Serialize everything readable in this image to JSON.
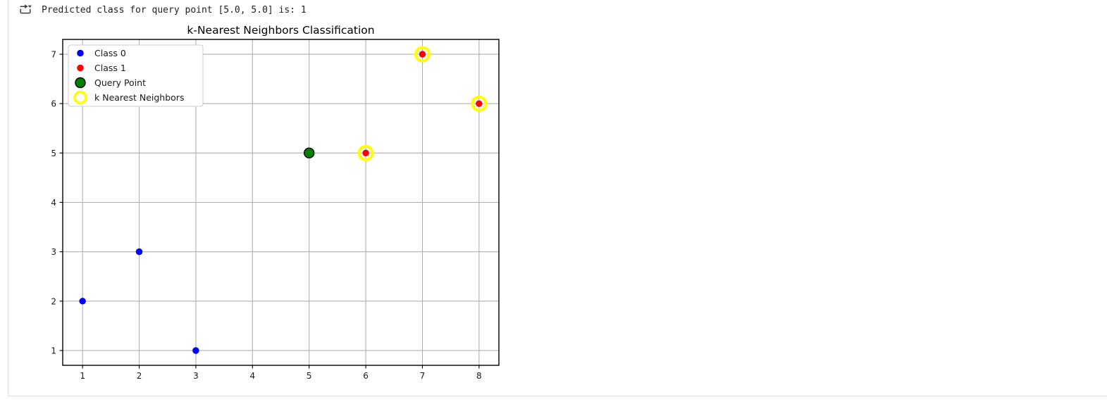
{
  "output_cell": {
    "icon": "cell-output-toggle-icon",
    "output_text": "Predicted class for query point [5.0, 5.0] is: 1"
  },
  "chart_data": {
    "type": "scatter",
    "title": "k-Nearest Neighbors Classification",
    "xlabel": "",
    "ylabel": "",
    "xlim": [
      0.65,
      8.35
    ],
    "ylim": [
      0.7,
      7.3
    ],
    "xticks": [
      1,
      2,
      3,
      4,
      5,
      6,
      7,
      8
    ],
    "yticks": [
      1,
      2,
      3,
      4,
      5,
      6,
      7
    ],
    "grid": true,
    "legend_position": "upper left",
    "colors": {
      "grid": "#b0b0b0",
      "spine": "#000000",
      "legend_edge": "#cccccc",
      "figure_bg": "#ffffff"
    },
    "series": [
      {
        "name": "Class 0",
        "marker": "dot",
        "color": "#0000ff",
        "size": 9.5,
        "points": [
          [
            1,
            2
          ],
          [
            2,
            3
          ],
          [
            3,
            1
          ]
        ]
      },
      {
        "name": "Class 1",
        "marker": "dot",
        "color": "#ff0000",
        "size": 9.5,
        "points": [
          [
            6,
            5
          ],
          [
            7,
            7
          ],
          [
            8,
            6
          ]
        ]
      },
      {
        "name": "Query Point",
        "marker": "dot",
        "color": "#008000",
        "edge": "#000000",
        "size": 14,
        "points": [
          [
            5,
            5
          ]
        ]
      },
      {
        "name": "k Nearest Neighbors",
        "marker": "ring",
        "color": "none",
        "edge": "#ffff00",
        "size": 19,
        "points": [
          [
            6,
            5
          ],
          [
            7,
            7
          ],
          [
            8,
            6
          ]
        ]
      }
    ]
  }
}
